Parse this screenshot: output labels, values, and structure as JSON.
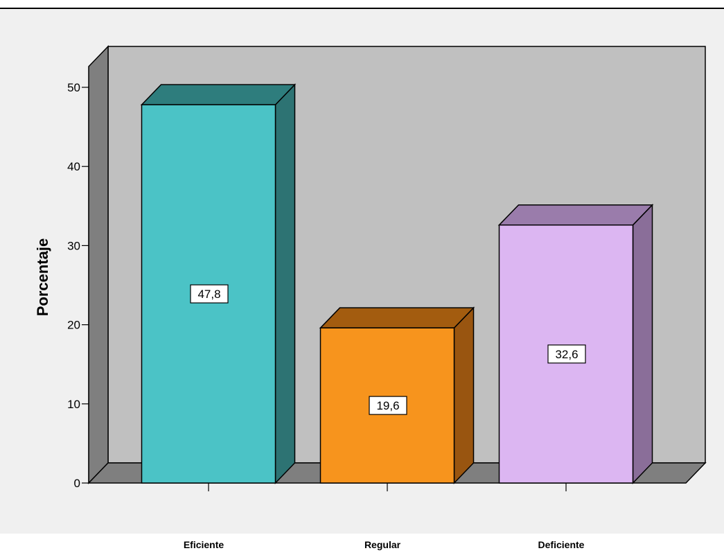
{
  "chart_data": {
    "type": "bar",
    "categories": [
      "Eficiente",
      "Regular",
      "Deficiente"
    ],
    "values": [
      47.8,
      19.6,
      32.6
    ],
    "value_labels": [
      "47,8",
      "19,6",
      "32,6"
    ],
    "ylabel": "Porcentaje",
    "xlabel": "",
    "ylim": [
      0,
      50
    ],
    "yticks": [
      0,
      10,
      20,
      30,
      40,
      50
    ],
    "grid": false,
    "style": "3d",
    "colors": {
      "front": [
        "#4bc3c6",
        "#f7941d",
        "#dcb6f2"
      ],
      "top": [
        "#2e7d7d",
        "#a35c0f",
        "#9a7cab"
      ],
      "side": [
        "#2d7373",
        "#995510",
        "#8a6e99"
      ],
      "back_wall": "#c0c0c0",
      "left_wall": "#7f7f7f",
      "floor": "#7f7f7f"
    }
  }
}
